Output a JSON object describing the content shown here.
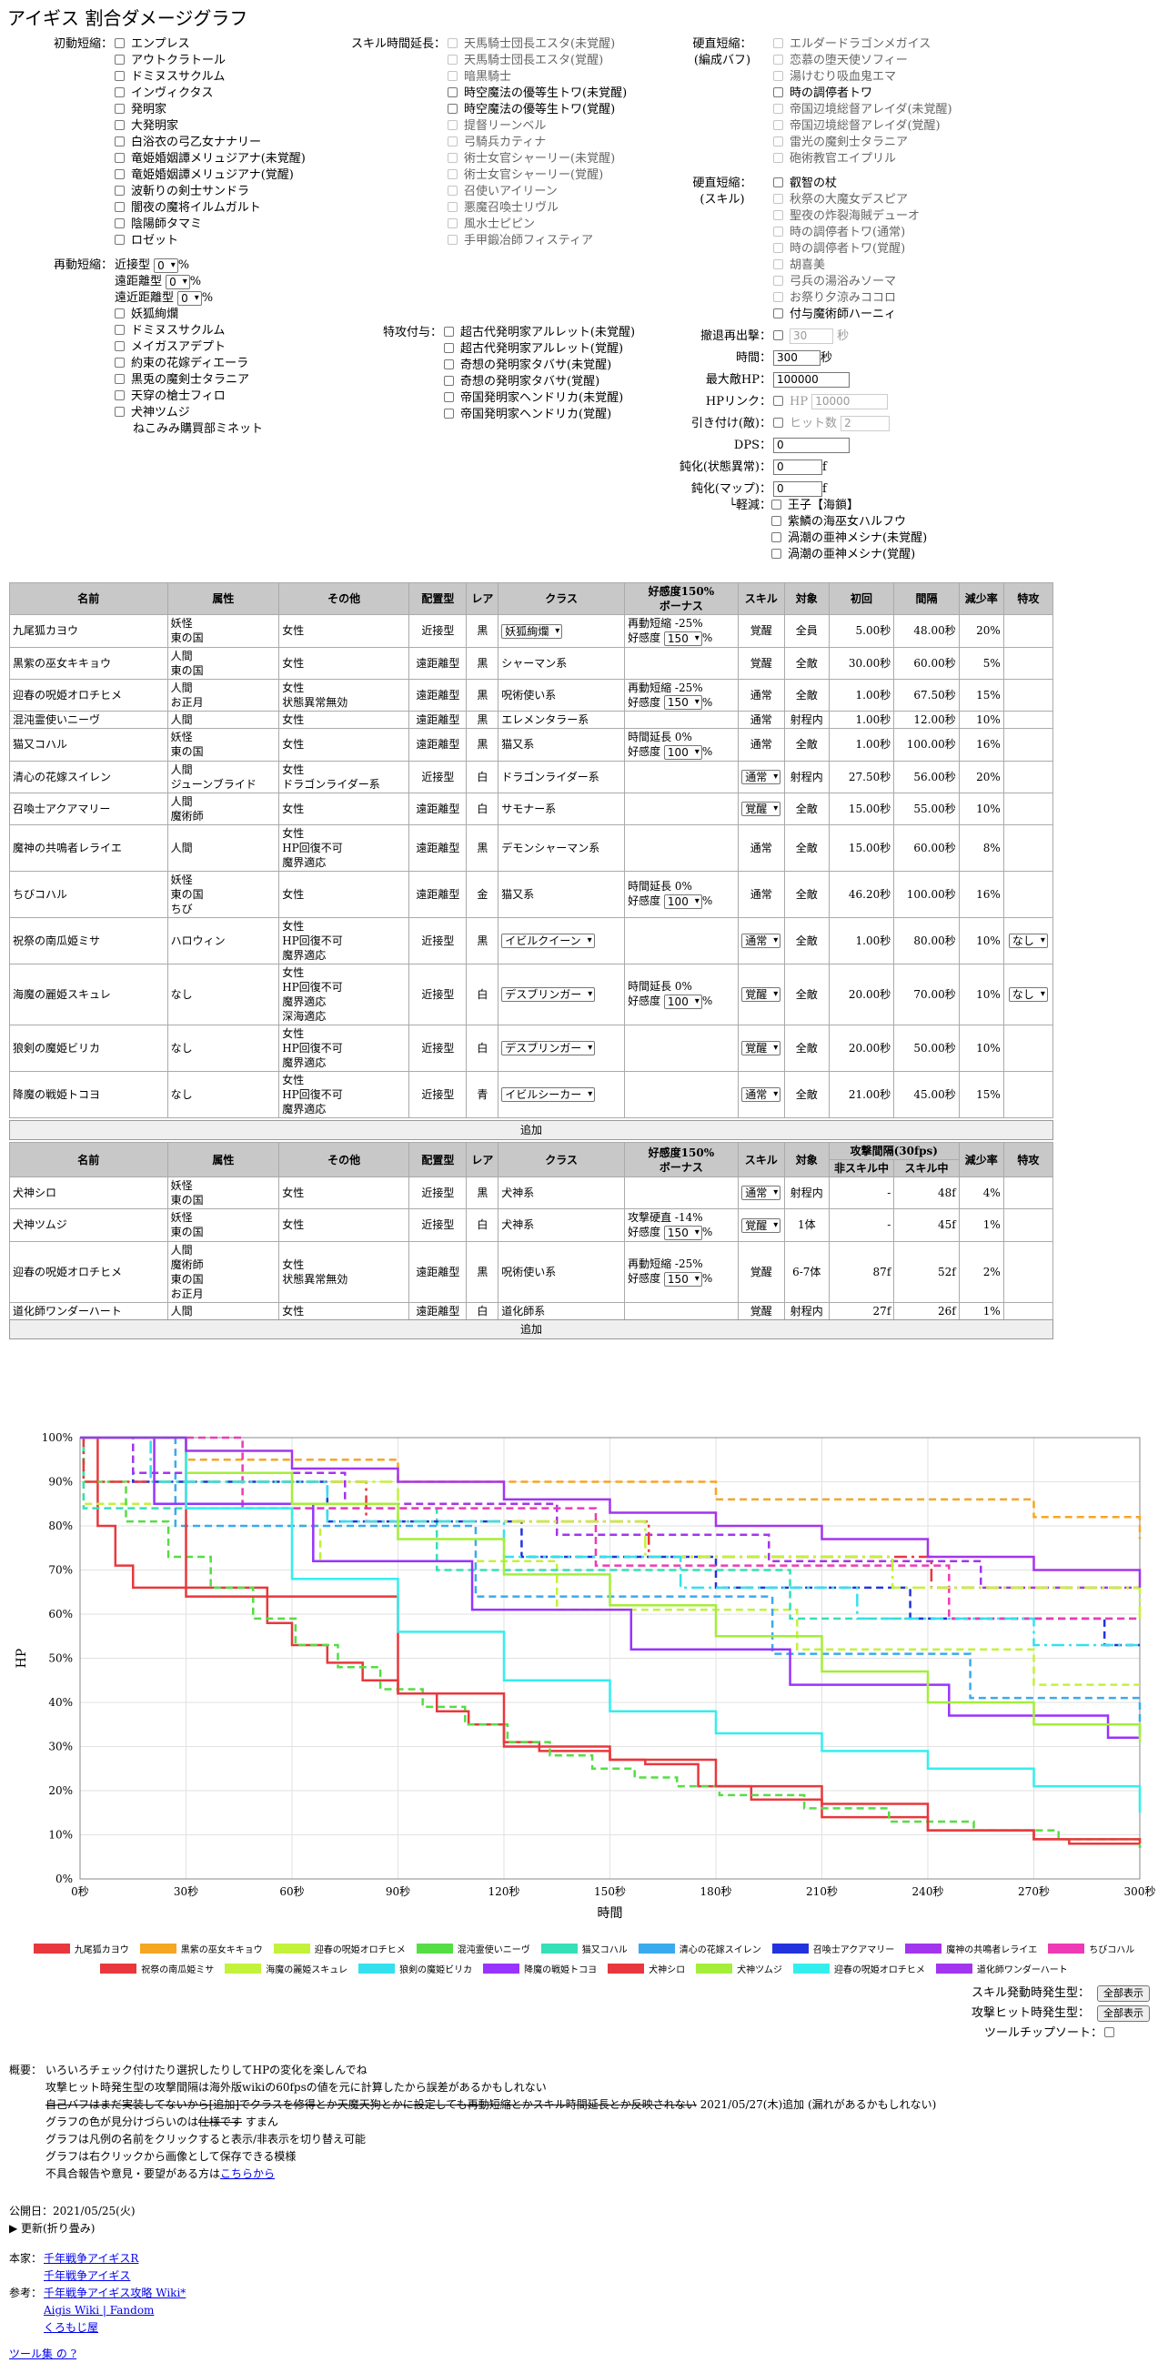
{
  "title": "アイギス 割合ダメージグラフ",
  "init_label": "初動短縮：",
  "init_items": [
    "エンプレス",
    "アウトクラトール",
    "ドミヌスサクルム",
    "インヴィクタス",
    "発明家",
    "大発明家",
    "白浴衣の弓乙女ナナリー",
    "竜姫婚姻譚メリュジアナ(未覚醒)",
    "竜姫婚姻譚メリュジアナ(覚醒)",
    "波斬りの剣士サンドラ",
    "闇夜の魔将イルムガルト",
    "陰陽師タマミ",
    "ロゼット"
  ],
  "reactive": {
    "label": "再動短縮：",
    "near": "近接型",
    "ranged": "遠距離型",
    "far": "遠近距離型",
    "zero": "0",
    "pct": "%",
    "items": [
      {
        "t": "妖狐絢爛",
        "cb": true
      },
      {
        "t": "ドミヌスサクルム",
        "cb": true
      },
      {
        "t": "メイガスアデプト",
        "cb": true
      },
      {
        "t": "約束の花嫁ディエーラ",
        "cb": true
      },
      {
        "t": "黒兎の魔剣士タラニア",
        "cb": true
      },
      {
        "t": "天穿の槍士フィロ",
        "cb": true
      },
      {
        "t": "犬神ツムジ",
        "cb": true
      },
      {
        "t": "ねこみみ購買部ミネット",
        "cb": false
      }
    ]
  },
  "skill_ext": {
    "label": "スキル時間延長：",
    "items": [
      {
        "t": "天馬騎士団長エスタ(未覚醒)",
        "d": true
      },
      {
        "t": "天馬騎士団長エスタ(覚醒)",
        "d": true
      },
      {
        "t": "暗黒騎士",
        "d": true
      },
      {
        "t": "時空魔法の優等生トワ(未覚醒)",
        "d": false
      },
      {
        "t": "時空魔法の優等生トワ(覚醒)",
        "d": false
      },
      {
        "t": "提督リーンベル",
        "d": true
      },
      {
        "t": "弓騎兵カティナ",
        "d": true
      },
      {
        "t": "術士女官シャーリー(未覚醒)",
        "d": true
      },
      {
        "t": "術士女官シャーリー(覚醒)",
        "d": true
      },
      {
        "t": "召使いアイリーン",
        "d": true
      },
      {
        "t": "悪魔召喚士リヴル",
        "d": true
      },
      {
        "t": "風水士ピピン",
        "d": true
      },
      {
        "t": "手甲鍛冶師フィスティア",
        "d": true
      }
    ]
  },
  "special": {
    "label": "特攻付与：",
    "items": [
      "超古代発明家アルレット(未覚醒)",
      "超古代発明家アルレット(覚醒)",
      "奇想の発明家タバサ(未覚醒)",
      "奇想の発明家タバサ(覚醒)",
      "帝国発明家ヘンドリカ(未覚醒)",
      "帝国発明家ヘンドリカ(覚醒)"
    ]
  },
  "stun_team": {
    "label1": "硬直短縮：",
    "label2": "(編成バフ)",
    "items": [
      {
        "t": "エルダードラゴンメガイス",
        "d": true
      },
      {
        "t": "恋慕の堕天使ソフィー",
        "d": true
      },
      {
        "t": "湯けむり吸血鬼エマ",
        "d": true
      },
      {
        "t": "時の調停者トワ",
        "d": false
      },
      {
        "t": "帝国辺境総督アレイダ(未覚醒)",
        "d": true
      },
      {
        "t": "帝国辺境総督アレイダ(覚醒)",
        "d": true
      },
      {
        "t": "雷光の魔剣士タラニア",
        "d": true
      },
      {
        "t": "砲術教官エイプリル",
        "d": true
      }
    ]
  },
  "stun_skill": {
    "label1": "硬直短縮：",
    "label2": "(スキル)",
    "items": [
      {
        "t": "叡智の杖",
        "d": false
      },
      {
        "t": "秋祭の大魔女デスピア",
        "d": true
      },
      {
        "t": "聖夜の炸裂海賊デューオ",
        "d": true
      },
      {
        "t": "時の調停者トワ(通常)",
        "d": true
      },
      {
        "t": "時の調停者トワ(覚醒)",
        "d": true
      },
      {
        "t": "胡喜美",
        "d": true
      },
      {
        "t": "弓兵の湯浴みソーマ",
        "d": true
      },
      {
        "t": "お祭り夕涼みココロ",
        "d": true
      },
      {
        "t": "付与魔術師ハーニィ",
        "d": false
      }
    ]
  },
  "params": {
    "retreat_label": "撤退再出撃：",
    "retreat_val": "30",
    "sec": "秒",
    "time_label": "時間：",
    "time_val": "300",
    "maxhp_label": "最大敵HP：",
    "maxhp_val": "100000",
    "hplink_label": "HPリンク：",
    "hplink_ph": "HP",
    "hplink_val": "10000",
    "pull_label": "引き付け(敵)：",
    "pull_ph": "ヒット数",
    "pull_val": "2",
    "dps_label": "DPS：",
    "dps_val": "0",
    "slow_status_label": "鈍化(状態異常)：",
    "slow_status_val": "0",
    "slow_map_label": "鈍化(マップ)：",
    "slow_map_val": "0",
    "f": "f",
    "mitig_label": "└軽減：",
    "mitig_items": [
      "王子【海鎖】",
      "紫鱗の海巫女ハルフウ",
      "渦潮の亜神メシナ(未覚醒)",
      "渦潮の亜神メシナ(覚醒)"
    ]
  },
  "table1": {
    "headers": [
      "名前",
      "属性",
      "その他",
      "配置型",
      "レア",
      "クラス",
      "好感度150%\nボーナス",
      "スキル",
      "対象",
      "初回",
      "間隔",
      "減少率",
      "特攻"
    ],
    "rows": [
      [
        "九尾狐カヨウ",
        "妖怪\n東の国",
        "女性",
        "近接型",
        "黒",
        "@妖狐絢爛",
        "再動短縮 -25%\n好感度 @150 %",
        "覚醒",
        "全員",
        "5.00秒",
        "48.00秒",
        "20%",
        ""
      ],
      [
        "黒紫の巫女キキョウ",
        "人間\n東の国",
        "女性",
        "遠距離型",
        "黒",
        "シャーマン系",
        "",
        "覚醒",
        "全敵",
        "30.00秒",
        "60.00秒",
        "5%",
        ""
      ],
      [
        "迎春の呪姫オロチヒメ",
        "人間\nお正月",
        "女性\n状態異常無効",
        "遠距離型",
        "黒",
        "呪術使い系",
        "再動短縮 -25%\n好感度 @150 %",
        "通常",
        "全敵",
        "1.00秒",
        "67.50秒",
        "15%",
        ""
      ],
      [
        "混沌霊使いニーヴ",
        "人間",
        "女性",
        "遠距離型",
        "黒",
        "エレメンタラー系",
        "",
        "通常",
        "射程内",
        "1.00秒",
        "12.00秒",
        "10%",
        ""
      ],
      [
        "猫又コハル",
        "妖怪\n東の国",
        "女性",
        "遠距離型",
        "黒",
        "猫又系",
        "時間延長 0%\n好感度 @100 %",
        "通常",
        "全敵",
        "1.00秒",
        "100.00秒",
        "16%",
        ""
      ],
      [
        "清心の花嫁スイレン",
        "人間\nジューンブライド",
        "女性\nドラゴンライダー系",
        "近接型",
        "白",
        "ドラゴンライダー系",
        "",
        "@通常",
        "射程内",
        "27.50秒",
        "56.00秒",
        "20%",
        ""
      ],
      [
        "召喚士アクアマリー",
        "人間\n魔術師",
        "女性",
        "遠距離型",
        "白",
        "サモナー系",
        "",
        "@覚醒",
        "全敵",
        "15.00秒",
        "55.00秒",
        "10%",
        ""
      ],
      [
        "魔神の共鳴者レライエ",
        "人間",
        "女性\nHP回復不可\n魔界適応",
        "遠距離型",
        "黒",
        "デモンシャーマン系",
        "",
        "通常",
        "全敵",
        "15.00秒",
        "60.00秒",
        "8%",
        ""
      ],
      [
        "ちびコハル",
        "妖怪\n東の国\nちび",
        "女性",
        "遠距離型",
        "金",
        "猫又系",
        "時間延長 0%\n好感度 @100 %",
        "通常",
        "全敵",
        "46.20秒",
        "100.00秒",
        "16%",
        ""
      ],
      [
        "祝祭の南瓜姫ミサ",
        "ハロウィン",
        "女性\nHP回復不可\n魔界適応",
        "近接型",
        "黒",
        "@イビルクイーン",
        "",
        "@通常",
        "全敵",
        "1.00秒",
        "80.00秒",
        "10%",
        "@なし"
      ],
      [
        "海魔の麗姫スキュレ",
        "なし",
        "女性\nHP回復不可\n魔界適応\n深海適応",
        "近接型",
        "白",
        "@デスブリンガー",
        "時間延長 0%\n好感度 @100 %",
        "@覚醒",
        "全敵",
        "20.00秒",
        "70.00秒",
        "10%",
        "@なし"
      ],
      [
        "狼剣の魔姫ビリカ",
        "なし",
        "女性\nHP回復不可\n魔界適応",
        "近接型",
        "白",
        "@デスブリンガー",
        "",
        "@覚醒",
        "全敵",
        "20.00秒",
        "50.00秒",
        "10%",
        ""
      ],
      [
        "降魔の戦姫トコヨ",
        "なし",
        "女性\nHP回復不可\n魔界適応",
        "近接型",
        "青",
        "@イビルシーカー",
        "",
        "@通常",
        "全敵",
        "21.00秒",
        "45.00秒",
        "15%",
        ""
      ]
    ]
  },
  "add_label": "追加",
  "table2": {
    "headers": [
      "名前",
      "属性",
      "その他",
      "配置型",
      "レア",
      "クラス",
      "好感度150%\nボーナス",
      "スキル",
      "対象",
      "攻撃間隔(30fps)",
      "減少率",
      "特攻"
    ],
    "sub": [
      "非スキル中",
      "スキル中"
    ],
    "rows": [
      [
        "犬神シロ",
        "妖怪\n東の国",
        "女性",
        "近接型",
        "黒",
        "犬神系",
        "",
        "@通常",
        "射程内",
        "-",
        "48f",
        "4%",
        ""
      ],
      [
        "犬神ツムジ",
        "妖怪\n東の国",
        "女性",
        "近接型",
        "白",
        "犬神系",
        "攻撃硬直 -14%\n好感度 @150 %",
        "@覚醒",
        "1体",
        "-",
        "45f",
        "1%",
        ""
      ],
      [
        "迎春の呪姫オロチヒメ",
        "人間\n魔術師\n東の国\nお正月",
        "女性\n状態異常無効",
        "遠距離型",
        "黒",
        "呪術使い系",
        "再動短縮 -25%\n好感度 @150 %",
        "覚醒",
        "6-7体",
        "87f",
        "52f",
        "2%",
        ""
      ],
      [
        "道化師ワンダーハート",
        "人間",
        "女性",
        "遠距離型",
        "白",
        "道化師系",
        "",
        "覚醒",
        "射程内",
        "27f",
        "26f",
        "1%",
        ""
      ]
    ]
  },
  "chart_data": {
    "type": "line",
    "xlabel": "時間",
    "ylabel": "HP",
    "xlim": [
      0,
      300
    ],
    "ylim": [
      0,
      100
    ],
    "xticks": [
      "0秒",
      "30秒",
      "60秒",
      "90秒",
      "120秒",
      "150秒",
      "180秒",
      "210秒",
      "240秒",
      "270秒",
      "300秒"
    ],
    "yticks": [
      "0%",
      "10%",
      "20%",
      "30%",
      "40%",
      "50%",
      "60%",
      "70%",
      "80%",
      "90%",
      "100%"
    ],
    "series": [
      {
        "name": "九尾狐カヨウ",
        "color": "#e8383d",
        "dash": "",
        "x": [
          0,
          5,
          10,
          15,
          20,
          30,
          45,
          53,
          60,
          70,
          80,
          90,
          101,
          110,
          120,
          130,
          150,
          160,
          175,
          190,
          210,
          240,
          260,
          270,
          280,
          300
        ],
        "y": [
          100,
          80,
          71,
          66,
          66,
          66,
          66,
          58,
          53,
          49,
          45,
          42,
          38,
          35,
          31,
          29,
          27,
          26,
          21,
          18,
          14,
          11,
          11,
          9,
          8,
          8
        ]
      },
      {
        "name": "黒紫の巫女キキョウ",
        "color": "#f5a623",
        "dash": "8,5",
        "x": [
          0,
          30,
          60,
          90,
          120,
          150,
          180,
          210,
          240,
          270,
          300
        ],
        "y": [
          100,
          95,
          95,
          90,
          90,
          90,
          86,
          86,
          86,
          82,
          77
        ]
      },
      {
        "name": "迎春の呪姫オロチヒメ",
        "color": "#c3f23a",
        "dash": "8,5",
        "x": [
          0,
          1,
          30,
          60,
          68,
          90,
          120,
          135,
          150,
          180,
          203,
          210,
          240,
          270,
          300
        ],
        "y": [
          100,
          85,
          85,
          80,
          72,
          72,
          72,
          61,
          61,
          61,
          52,
          52,
          52,
          44,
          44
        ]
      },
      {
        "name": "混沌霊使いニーヴ",
        "color": "#55dd44",
        "dash": "8,5",
        "x": [
          0,
          1,
          13,
          25,
          37,
          49,
          61,
          73,
          85,
          97,
          109,
          121,
          133,
          145,
          157,
          169,
          181,
          205,
          229,
          253,
          277,
          300
        ],
        "y": [
          100,
          90,
          81,
          73,
          66,
          59,
          53,
          48,
          43,
          39,
          35,
          31,
          28,
          25,
          23,
          21,
          19,
          16,
          13,
          11,
          9,
          7
        ]
      },
      {
        "name": "猫又コハル",
        "color": "#34e0b8",
        "dash": "8,5",
        "x": [
          0,
          1,
          101,
          201,
          300
        ],
        "y": [
          100,
          84,
          70,
          59,
          59
        ]
      },
      {
        "name": "清心の花嫁スイレン",
        "color": "#3aaaee",
        "dash": "8,5",
        "x": [
          0,
          27,
          56,
          84,
          112,
          140,
          168,
          196,
          224,
          252,
          280,
          300
        ],
        "y": [
          100,
          80,
          80,
          80,
          64,
          64,
          64,
          51,
          51,
          41,
          41,
          33
        ]
      },
      {
        "name": "召喚士アクアマリー",
        "color": "#2233dd",
        "dash": "8,5",
        "x": [
          0,
          15,
          70,
          125,
          180,
          235,
          290,
          300
        ],
        "y": [
          100,
          90,
          81,
          73,
          66,
          59,
          53,
          53
        ]
      },
      {
        "name": "魔神の共鳴者レライエ",
        "color": "#a335ee",
        "dash": "8,5",
        "x": [
          0,
          15,
          75,
          135,
          195,
          255,
          300
        ],
        "y": [
          100,
          92,
          85,
          78,
          72,
          66,
          66
        ]
      },
      {
        "name": "ちびコハル",
        "color": "#ee3ab5",
        "dash": "8,5",
        "x": [
          0,
          46,
          146,
          246,
          300
        ],
        "y": [
          100,
          84,
          71,
          59,
          59
        ]
      },
      {
        "name": "祝祭の南瓜姫ミサ",
        "color": "#e8383d",
        "dash": "14,5,3,5",
        "x": [
          0,
          1,
          81,
          161,
          241,
          300
        ],
        "y": [
          100,
          90,
          81,
          73,
          66,
          66
        ]
      },
      {
        "name": "海魔の麗姫スキュレ",
        "color": "#c3f23a",
        "dash": "14,5,3,5",
        "x": [
          0,
          20,
          90,
          160,
          230,
          300
        ],
        "y": [
          100,
          90,
          81,
          73,
          66,
          59
        ]
      },
      {
        "name": "狼剣の魔姫ビリカ",
        "color": "#34e0ee",
        "dash": "14,5,3,5",
        "x": [
          0,
          20,
          70,
          120,
          170,
          220,
          270,
          300
        ],
        "y": [
          100,
          90,
          81,
          73,
          66,
          59,
          53,
          53
        ]
      },
      {
        "name": "降魔の戦姫トコヨ",
        "color": "#9933ff",
        "dash": "",
        "x": [
          0,
          21,
          66,
          111,
          156,
          201,
          246,
          291,
          300
        ],
        "y": [
          100,
          85,
          72,
          61,
          52,
          44,
          37,
          32,
          32
        ]
      },
      {
        "name": "犬神シロ",
        "color": "#e8383d",
        "dash": "",
        "x": [
          0,
          30,
          60,
          90,
          120,
          150,
          180,
          210,
          240,
          270,
          300
        ],
        "y": [
          100,
          64,
          64,
          42,
          30,
          27,
          21,
          17,
          11,
          9,
          8
        ]
      },
      {
        "name": "犬神ツムジ",
        "color": "#a4ee3a",
        "dash": "",
        "x": [
          0,
          30,
          60,
          90,
          120,
          150,
          180,
          210,
          240,
          270,
          300
        ],
        "y": [
          100,
          92,
          85,
          77,
          69,
          62,
          55,
          47,
          40,
          35,
          31
        ]
      },
      {
        "name": "迎春の呪姫オロチヒメ",
        "color": "#34eeee",
        "dash": "",
        "x": [
          0,
          30,
          60,
          90,
          120,
          150,
          180,
          210,
          240,
          270,
          300
        ],
        "y": [
          100,
          84,
          68,
          56,
          45,
          38,
          33,
          29,
          25,
          21,
          15
        ]
      },
      {
        "name": "道化師ワンダーハート",
        "color": "#a335ee",
        "dash": "",
        "x": [
          0,
          30,
          60,
          90,
          120,
          150,
          180,
          210,
          240,
          270,
          300
        ],
        "y": [
          100,
          97,
          93,
          90,
          86,
          83,
          80,
          77,
          73,
          70,
          66
        ]
      }
    ]
  },
  "controls": {
    "skill_start": "スキル発動時発生型：",
    "hit_start": "攻撃ヒット時発生型：",
    "tooltip_sort": "ツールチップソート：",
    "show_all": "全部表示"
  },
  "notes": {
    "label": "概要：",
    "lines": [
      "いろいろチェック付けたり選択したりしてHPの変化を楽しんでね",
      "攻撃ヒット時発生型の攻撃間隔は海外版wikiの60fpsの値を元に計算したから誤差があるかもしれない"
    ],
    "strike": "自己バフはまだ実装してないから[追加]でクラスを修得とか天魔天狗とかに設定しても再動短縮とかスキル時間延長とか反映されない",
    "strike_after": " 2021/05/27(木)追加 (漏れがあるかもしれない)",
    "line3a": "グラフの色が見分けづらいのは",
    "line3s": "仕様です",
    "line3b": " すまん",
    "lines2": [
      "グラフは凡例の名前をクリックすると表示/非表示を切り替え可能",
      "グラフは右クリックから画像として保存できる模様"
    ],
    "contact": "不具合報告や意見・要望がある方は",
    "contact_link": "こちらから",
    "published": "公開日：2021/05/25(火)",
    "updates": "▶ 更新(折り畳み)",
    "home_label": "本家：",
    "home": [
      "千年戦争アイギスR",
      "千年戦争アイギス"
    ],
    "ref_label": "参考：",
    "refs": [
      "千年戦争アイギス攻略 Wiki*",
      "Aigis Wiki | Fandom",
      "くろもじ屋"
    ],
    "tail": "ツール集 の ?"
  }
}
